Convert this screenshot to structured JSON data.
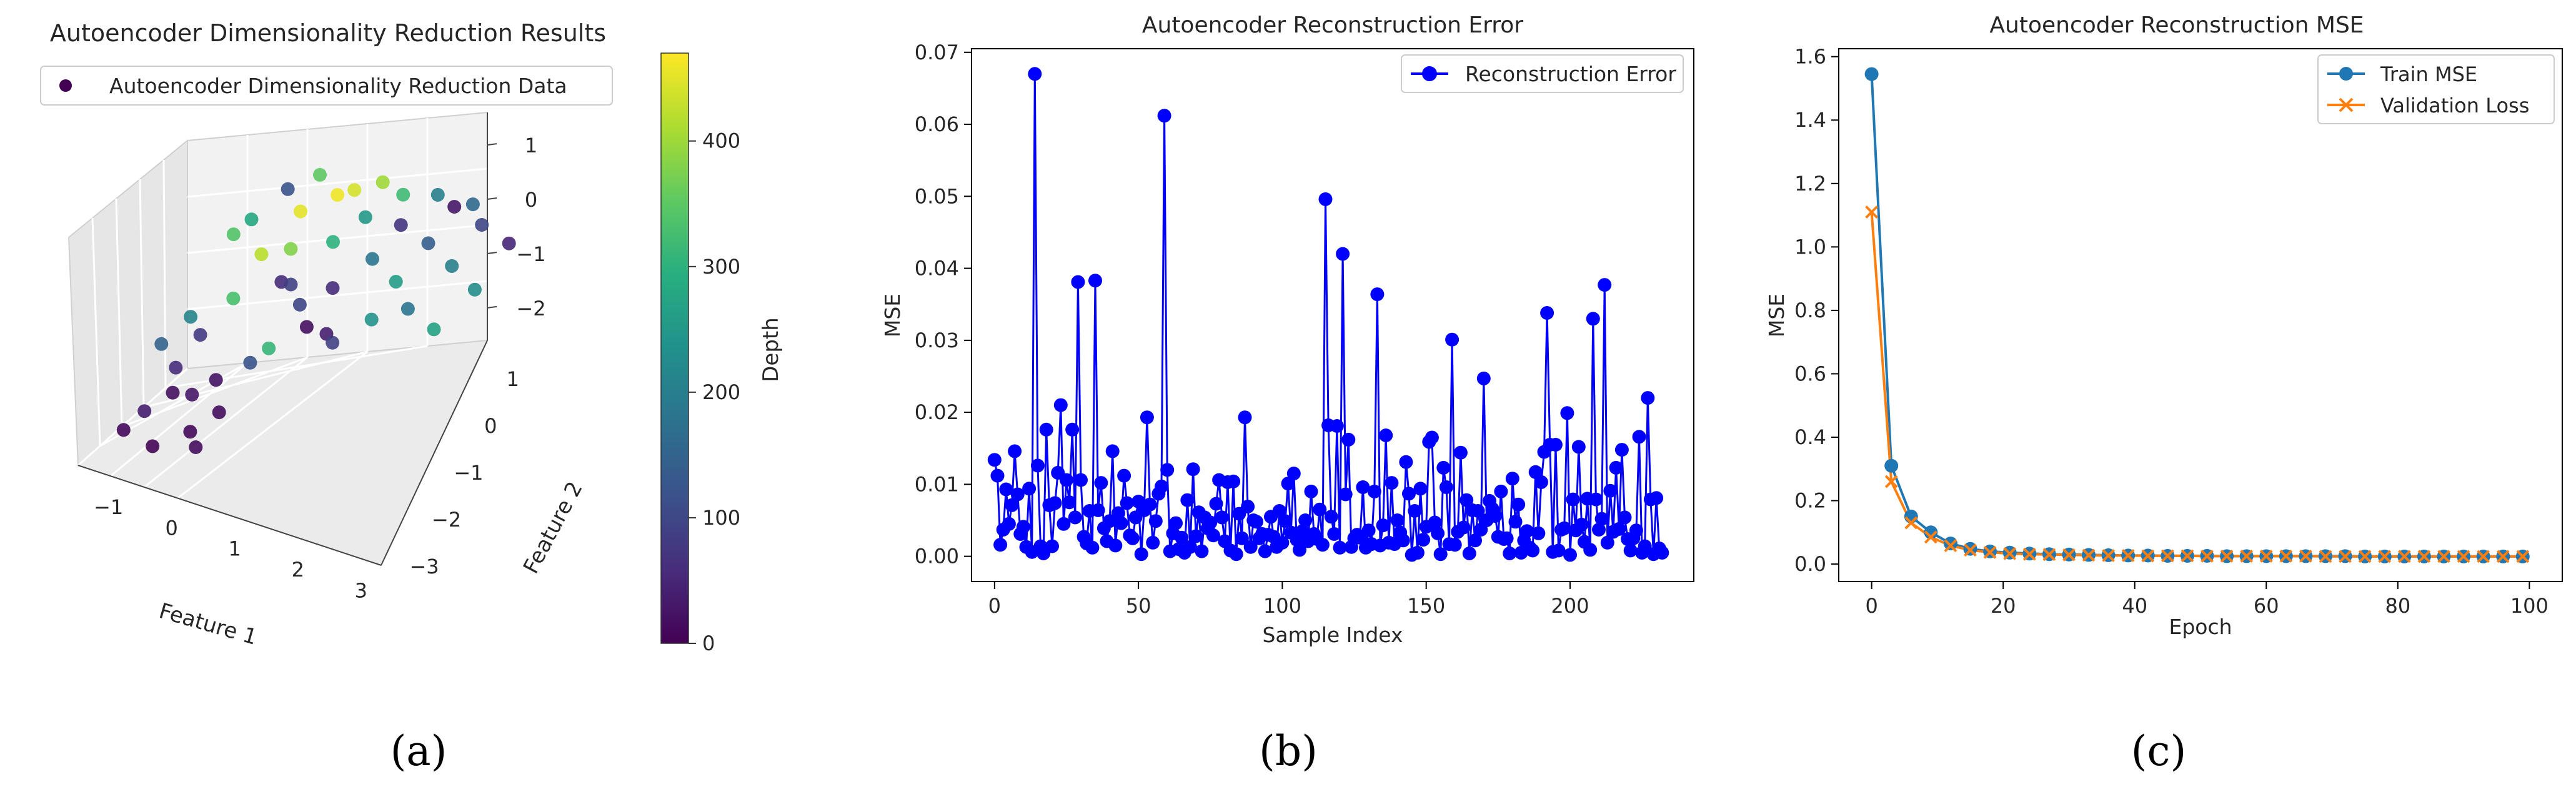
{
  "chart_data": [
    {
      "type": "scatter3d",
      "title": "Autoencoder Dimensionality Reduction Results",
      "xlabel": "Feature 1",
      "ylabel": "Feature 2",
      "zlabel": "",
      "xticks": [
        "−1",
        "0",
        "1",
        "2",
        "3"
      ],
      "yticks": [
        "−3",
        "−2",
        "−1",
        "0",
        "1"
      ],
      "zticks": [
        "−2",
        "−1",
        "0",
        "1"
      ],
      "xlim": [
        -1.6,
        3.2
      ],
      "ylim": [
        -3.2,
        1.6
      ],
      "zlim": [
        -2.6,
        1.6
      ],
      "legend": {
        "label": "Autoencoder Dimensionality Reduction Data",
        "position": "top-left"
      },
      "colorbar": {
        "label": "Depth",
        "ticks": [
          "0",
          "100",
          "200",
          "300",
          "400"
        ],
        "range": [
          0,
          470
        ],
        "colormap": "viridis"
      },
      "points": [
        {
          "x": -1.2,
          "y": -1.5,
          "z": -2.1,
          "c": 40
        },
        {
          "x": -0.9,
          "y": -1.2,
          "z": -1.8,
          "c": 20
        },
        {
          "x": -1.0,
          "y": -0.8,
          "z": -1.5,
          "c": 60
        },
        {
          "x": -0.7,
          "y": -1.0,
          "z": -1.9,
          "c": 30
        },
        {
          "x": -1.3,
          "y": -0.5,
          "z": -1.2,
          "c": 150
        },
        {
          "x": -0.5,
          "y": -1.6,
          "z": -2.3,
          "c": 10
        },
        {
          "x": -0.8,
          "y": -0.4,
          "z": -1.0,
          "c": 80
        },
        {
          "x": -1.1,
          "y": 0.1,
          "z": -0.9,
          "c": 210
        },
        {
          "x": -0.4,
          "y": -0.9,
          "z": -1.6,
          "c": 25
        },
        {
          "x": -0.6,
          "y": 0.3,
          "z": -0.6,
          "c": 330
        },
        {
          "x": -0.2,
          "y": -1.3,
          "z": -2.0,
          "c": 15
        },
        {
          "x": 0.0,
          "y": -0.7,
          "z": -1.3,
          "c": 120
        },
        {
          "x": -0.3,
          "y": 0.5,
          "z": 0.2,
          "c": 420
        },
        {
          "x": 0.2,
          "y": 0.2,
          "z": 0.5,
          "c": 380
        },
        {
          "x": 0.4,
          "y": -0.3,
          "z": 0.1,
          "c": 90
        },
        {
          "x": 0.1,
          "y": 0.8,
          "z": 0.9,
          "c": 450
        },
        {
          "x": 0.6,
          "y": 0.6,
          "z": 0.4,
          "c": 300
        },
        {
          "x": 0.8,
          "y": 0.1,
          "z": -0.2,
          "c": 60
        },
        {
          "x": 0.5,
          "y": 1.0,
          "z": 1.1,
          "c": 460
        },
        {
          "x": 0.9,
          "y": 0.9,
          "z": 0.7,
          "c": 250
        },
        {
          "x": 1.2,
          "y": 0.4,
          "z": 0.2,
          "c": 180
        },
        {
          "x": 1.4,
          "y": 0.8,
          "z": 0.6,
          "c": 70
        },
        {
          "x": 1.0,
          "y": 1.2,
          "z": 1.2,
          "c": 400
        },
        {
          "x": 1.6,
          "y": 0.2,
          "z": -0.1,
          "c": 260
        },
        {
          "x": 1.8,
          "y": 0.7,
          "z": 0.3,
          "c": 140
        },
        {
          "x": 2.0,
          "y": 1.0,
          "z": 0.8,
          "c": 30
        },
        {
          "x": 2.2,
          "y": 0.5,
          "z": 0.0,
          "c": 200
        },
        {
          "x": 2.4,
          "y": 0.9,
          "z": 0.5,
          "c": 100
        },
        {
          "x": 2.6,
          "y": 0.3,
          "z": -0.3,
          "c": 230
        },
        {
          "x": 2.8,
          "y": 0.8,
          "z": 0.2,
          "c": 50
        },
        {
          "x": 0.3,
          "y": -0.8,
          "z": -0.9,
          "c": 310
        },
        {
          "x": 0.7,
          "y": -0.5,
          "z": -0.6,
          "c": 20
        },
        {
          "x": 1.1,
          "y": -0.6,
          "z": -0.8,
          "c": 90
        },
        {
          "x": 1.5,
          "y": -0.3,
          "z": -0.5,
          "c": 240
        },
        {
          "x": 1.9,
          "y": -0.1,
          "z": -0.4,
          "c": 180
        },
        {
          "x": 2.3,
          "y": -0.2,
          "z": -0.7,
          "c": 270
        },
        {
          "x": -0.1,
          "y": 0.9,
          "z": 1.3,
          "c": 120
        },
        {
          "x": 0.2,
          "y": 1.2,
          "z": 1.4,
          "c": 350
        },
        {
          "x": 0.6,
          "y": 1.3,
          "z": 1.0,
          "c": 440
        },
        {
          "x": -0.5,
          "y": 0.7,
          "z": 0.8,
          "c": 280
        },
        {
          "x": -0.8,
          "y": 0.9,
          "z": 0.4,
          "c": 340
        },
        {
          "x": 0.0,
          "y": 0.4,
          "z": -0.3,
          "c": 60
        },
        {
          "x": 0.4,
          "y": 0.0,
          "z": -0.5,
          "c": 100
        },
        {
          "x": 0.8,
          "y": -0.1,
          "z": -1.0,
          "c": 40
        },
        {
          "x": 1.3,
          "y": 1.1,
          "z": 1.0,
          "c": 320
        },
        {
          "x": 1.7,
          "y": 1.2,
          "z": 0.9,
          "c": 200
        },
        {
          "x": 2.1,
          "y": 1.3,
          "z": 0.6,
          "c": 160
        },
        {
          "x": -1.4,
          "y": -1.8,
          "z": -2.4,
          "c": 10
        },
        {
          "x": -0.9,
          "y": -2.0,
          "z": -2.5,
          "c": 5
        },
        {
          "x": -0.3,
          "y": -1.9,
          "z": -2.4,
          "c": 15
        }
      ]
    },
    {
      "type": "line",
      "title": "Autoencoder Reconstruction Error",
      "xlabel": "Sample Index",
      "ylabel": "MSE",
      "xlim": [
        -8,
        243
      ],
      "ylim": [
        -0.0035,
        0.0705
      ],
      "xticks": [
        0,
        50,
        100,
        150,
        200
      ],
      "yticks": [
        0.0,
        0.01,
        0.02,
        0.03,
        0.04,
        0.05,
        0.06,
        0.07
      ],
      "ytick_labels": [
        "0.00",
        "0.01",
        "0.02",
        "0.03",
        "0.04",
        "0.05",
        "0.06",
        "0.07"
      ],
      "legend": {
        "position": "top-right"
      },
      "series": [
        {
          "name": "Reconstruction Error",
          "color": "#0000ff",
          "values": [
            0.0134,
            0.0112,
            0.0016,
            0.0037,
            0.0093,
            0.0045,
            0.0071,
            0.0146,
            0.0086,
            0.0031,
            0.0041,
            0.0013,
            0.0094,
            0.0006,
            0.067,
            0.0126,
            0.0014,
            0.0004,
            0.0176,
            0.0071,
            0.0014,
            0.0074,
            0.0116,
            0.021,
            0.0045,
            0.0106,
            0.0075,
            0.0176,
            0.0054,
            0.0381,
            0.0106,
            0.0027,
            0.0018,
            0.0063,
            0.0012,
            0.0383,
            0.0064,
            0.0102,
            0.0039,
            0.0021,
            0.0049,
            0.0146,
            0.0015,
            0.006,
            0.0046,
            0.0112,
            0.0074,
            0.0029,
            0.0025,
            0.0054,
            0.0076,
            0.0003,
            0.0064,
            0.0193,
            0.0072,
            0.0019,
            0.0049,
            0.0087,
            0.0097,
            0.0612,
            0.012,
            0.0007,
            0.0032,
            0.0046,
            0.001,
            0.0026,
            0.0005,
            0.0078,
            0.0013,
            0.0121,
            0.0028,
            0.0061,
            0.0007,
            0.0054,
            0.0039,
            0.0047,
            0.0029,
            0.0073,
            0.0106,
            0.0054,
            0.0021,
            0.0103,
            0.0008,
            0.0104,
            0.0003,
            0.0059,
            0.0025,
            0.0193,
            0.0069,
            0.0013,
            0.005,
            0.0048,
            0.0025,
            0.0031,
            0.0007,
            0.003,
            0.0055,
            0.0027,
            0.0013,
            0.0063,
            0.0019,
            0.0049,
            0.0101,
            0.0033,
            0.0115,
            0.0023,
            0.0009,
            0.0035,
            0.005,
            0.0021,
            0.009,
            0.0031,
            0.0024,
            0.0065,
            0.0016,
            0.0496,
            0.0182,
            0.0055,
            0.0031,
            0.0181,
            0.0012,
            0.042,
            0.0086,
            0.0162,
            0.0013,
            0.0025,
            0.003,
            0.0026,
            0.0096,
            0.0012,
            0.0036,
            0.0017,
            0.009,
            0.0364,
            0.0015,
            0.0043,
            0.0168,
            0.0019,
            0.0102,
            0.0017,
            0.005,
            0.0033,
            0.0022,
            0.0131,
            0.0087,
            0.0002,
            0.0063,
            0.0005,
            0.0094,
            0.0023,
            0.0041,
            0.0159,
            0.0165,
            0.0047,
            0.0032,
            0.0003,
            0.0123,
            0.0096,
            0.0017,
            0.0301,
            0.0016,
            0.0034,
            0.0144,
            0.004,
            0.0078,
            0.0004,
            0.0064,
            0.0022,
            0.0063,
            0.0037,
            0.0247,
            0.005,
            0.0077,
            0.0066,
            0.0056,
            0.0027,
            0.009,
            0.0024,
            0.0025,
            0.0004,
            0.0108,
            0.0048,
            0.0072,
            0.0005,
            0.0022,
            0.0035,
            0.0012,
            0.0008,
            0.0117,
            0.0032,
            0.0103,
            0.0145,
            0.0338,
            0.0155,
            0.0006,
            0.0155,
            0.0008,
            0.0037,
            0.0039,
            0.0199,
            0.0002,
            0.0079,
            0.0036,
            0.0152,
            0.0044,
            0.002,
            0.008,
            0.0009,
            0.033,
            0.0079,
            0.0037,
            0.0052,
            0.0377,
            0.0019,
            0.0091,
            0.0034,
            0.0123,
            0.0038,
            0.0148,
            0.0054,
            0.0024,
            0.0008,
            0.0025,
            0.0036,
            0.0166,
            0.0005,
            0.0014,
            0.022,
            0.0079,
            0.0003,
            0.0081,
            0.0011,
            0.0005
          ]
        }
      ]
    },
    {
      "type": "line",
      "title": "Autoencoder Reconstruction MSE",
      "xlabel": "Epoch",
      "ylabel": "MSE",
      "xlim": [
        -5,
        105
      ],
      "ylim": [
        -0.055,
        1.625
      ],
      "xticks": [
        0,
        20,
        40,
        60,
        80,
        100
      ],
      "yticks": [
        0.0,
        0.2,
        0.4,
        0.6,
        0.8,
        1.0,
        1.2,
        1.4,
        1.6
      ],
      "ytick_labels": [
        "0.0",
        "0.2",
        "0.4",
        "0.6",
        "0.8",
        "1.0",
        "1.2",
        "1.4",
        "1.6"
      ],
      "legend": {
        "position": "top-right"
      },
      "x": [
        0,
        3,
        6,
        9,
        12,
        15,
        18,
        21,
        24,
        27,
        30,
        33,
        36,
        39,
        42,
        45,
        48,
        51,
        54,
        57,
        60,
        63,
        66,
        69,
        72,
        75,
        78,
        81,
        84,
        87,
        90,
        93,
        96,
        99
      ],
      "series": [
        {
          "name": "Train MSE",
          "color": "#1f77b4",
          "values": [
            1.545,
            0.31,
            0.15,
            0.1,
            0.065,
            0.048,
            0.04,
            0.036,
            0.033,
            0.031,
            0.03,
            0.029,
            0.028,
            0.027,
            0.027,
            0.026,
            0.026,
            0.026,
            0.025,
            0.025,
            0.025,
            0.025,
            0.025,
            0.025,
            0.025,
            0.024,
            0.024,
            0.024,
            0.024,
            0.024,
            0.024,
            0.024,
            0.024,
            0.024
          ]
        },
        {
          "name": "Validation Loss",
          "color": "#ff7f0e",
          "values": [
            1.11,
            0.26,
            0.13,
            0.085,
            0.058,
            0.044,
            0.037,
            0.033,
            0.031,
            0.03,
            0.029,
            0.028,
            0.027,
            0.027,
            0.026,
            0.026,
            0.026,
            0.025,
            0.025,
            0.025,
            0.025,
            0.025,
            0.025,
            0.024,
            0.024,
            0.024,
            0.024,
            0.024,
            0.024,
            0.024,
            0.024,
            0.024,
            0.024,
            0.024
          ]
        }
      ]
    }
  ],
  "captions": [
    "(a)",
    "(b)",
    "(c)"
  ]
}
